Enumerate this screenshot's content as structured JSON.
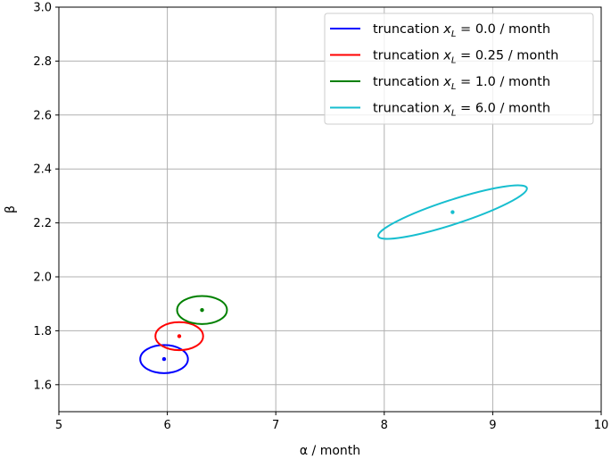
{
  "chart_data": {
    "type": "scatter",
    "xlabel": "α / month",
    "ylabel": "β",
    "xlim": [
      5,
      10
    ],
    "ylim": [
      1.5,
      3.0
    ],
    "xticks": [
      5,
      6,
      7,
      8,
      9,
      10
    ],
    "xtick_labels": [
      "5",
      "6",
      "7",
      "8",
      "9",
      "10"
    ],
    "yticks": [
      1.6,
      1.8,
      2.0,
      2.2,
      2.4,
      2.6,
      2.8,
      3.0
    ],
    "ytick_labels": [
      "1.6",
      "1.8",
      "2.0",
      "2.2",
      "2.4",
      "2.6",
      "2.8",
      "3.0"
    ],
    "grid": true,
    "legend_position": "top-right",
    "series": [
      {
        "name": "truncation x_L = 0.0 / month",
        "legend_prefix": "truncation ",
        "legend_var": "x",
        "legend_sub": "L",
        "legend_suffix": " = 0.0 / month",
        "color": "#0000ff",
        "center": [
          5.97,
          1.695
        ],
        "ellipse": {
          "half_width_x": 0.22,
          "half_height_y": 0.052,
          "angle_deg": 0
        }
      },
      {
        "name": "truncation x_L = 0.25 / month",
        "legend_prefix": "truncation ",
        "legend_var": "x",
        "legend_sub": "L",
        "legend_suffix": " = 0.25 / month",
        "color": "#ff0000",
        "center": [
          6.11,
          1.78
        ],
        "ellipse": {
          "half_width_x": 0.22,
          "half_height_y": 0.052,
          "angle_deg": 0
        }
      },
      {
        "name": "truncation x_L = 1.0 / month",
        "legend_prefix": "truncation ",
        "legend_var": "x",
        "legend_sub": "L",
        "legend_suffix": " = 1.0 / month",
        "color": "#008000",
        "center": [
          6.32,
          1.877
        ],
        "ellipse": {
          "half_width_x": 0.23,
          "half_height_y": 0.052,
          "angle_deg": 0
        }
      },
      {
        "name": "truncation x_L = 6.0 / month",
        "legend_prefix": "truncation ",
        "legend_var": "x",
        "legend_sub": "L",
        "legend_suffix": " = 6.0 / month",
        "color": "#17becf",
        "center": [
          8.63,
          2.24
        ],
        "ellipse": {
          "half_width_x": 0.72,
          "half_height_y": 0.045,
          "angle_deg": 18
        }
      }
    ]
  }
}
